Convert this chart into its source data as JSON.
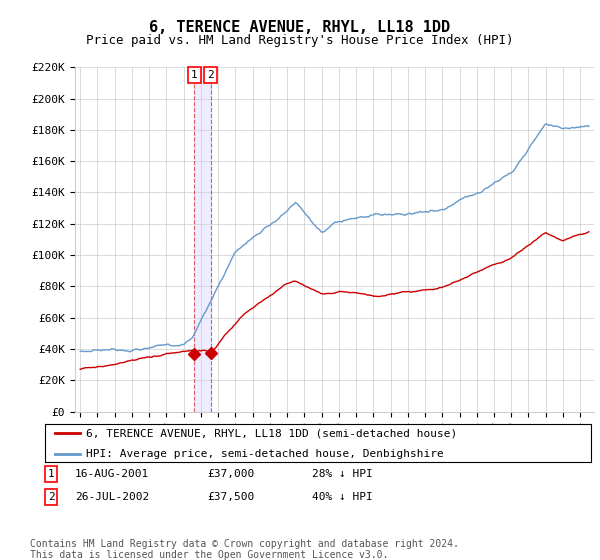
{
  "title": "6, TERENCE AVENUE, RHYL, LL18 1DD",
  "subtitle": "Price paid vs. HM Land Registry's House Price Index (HPI)",
  "ylim": [
    0,
    220000
  ],
  "yticks": [
    0,
    20000,
    40000,
    60000,
    80000,
    100000,
    120000,
    140000,
    160000,
    180000,
    200000,
    220000
  ],
  "ytick_labels": [
    "£0",
    "£20K",
    "£40K",
    "£60K",
    "£80K",
    "£100K",
    "£120K",
    "£140K",
    "£160K",
    "£180K",
    "£200K",
    "£220K"
  ],
  "hpi_color": "#6699cc",
  "price_color": "#cc0000",
  "vline_color": "#cc0000",
  "vshade_color": "#ddddff",
  "background_color": "#ffffff",
  "grid_color": "#cccccc",
  "legend_house": "6, TERENCE AVENUE, RHYL, LL18 1DD (semi-detached house)",
  "legend_hpi": "HPI: Average price, semi-detached house, Denbighshire",
  "transaction1_date": "16-AUG-2001",
  "transaction1_price": "£37,000",
  "transaction1_hpi": "28% ↓ HPI",
  "transaction1_year": 2001.62,
  "transaction1_value": 37000,
  "transaction2_date": "26-JUL-2002",
  "transaction2_price": "£37,500",
  "transaction2_hpi": "40% ↓ HPI",
  "transaction2_year": 2002.57,
  "transaction2_value": 37500,
  "footer": "Contains HM Land Registry data © Crown copyright and database right 2024.\nThis data is licensed under the Open Government Licence v3.0.",
  "title_fontsize": 11,
  "subtitle_fontsize": 9,
  "tick_fontsize": 8,
  "legend_fontsize": 8,
  "footer_fontsize": 7,
  "xstart": 1995,
  "xend": 2024.5
}
